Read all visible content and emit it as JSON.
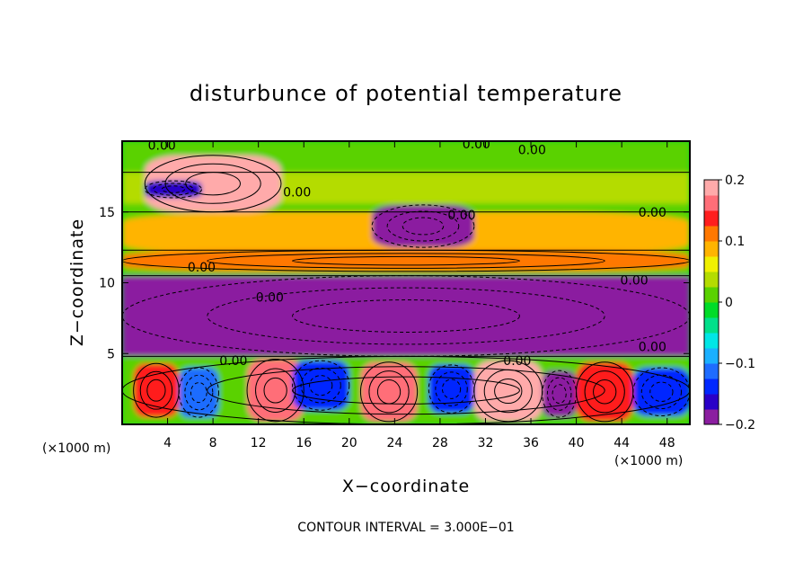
{
  "chart_data": {
    "type": "heatmap",
    "title": "disturbunce of potential temperature",
    "xlabel": "X−coordinate",
    "ylabel": "Z−coordinate",
    "x_unit": "(×1000 m)",
    "y_unit": "(×1000 m)",
    "footer": "CONTOUR INTERVAL = 3.000E−01",
    "xlim": [
      0,
      50
    ],
    "ylim": [
      0,
      20
    ],
    "x_ticks": [
      4,
      8,
      12,
      16,
      20,
      24,
      28,
      32,
      36,
      40,
      44,
      48
    ],
    "y_ticks": [
      5,
      10,
      15
    ],
    "colorbar": {
      "range": [
        -0.2,
        0.2
      ],
      "ticks": [
        {
          "value": 0.2,
          "label": "0.2"
        },
        {
          "value": 0.1,
          "label": "0.1"
        },
        {
          "value": 0,
          "label": "0"
        },
        {
          "value": -0.1,
          "label": "−0.1"
        },
        {
          "value": -0.2,
          "label": "−0.2"
        }
      ],
      "colors": [
        "#8b1ea0",
        "#2a00c8",
        "#0028ff",
        "#1e6cff",
        "#1ab0ff",
        "#00e6e6",
        "#00e08a",
        "#00dc28",
        "#5ad200",
        "#b4dc00",
        "#f0f000",
        "#ffb400",
        "#ff7800",
        "#ff1e1e",
        "#ff6e78",
        "#ffaaaa"
      ]
    },
    "contour_labels": [
      {
        "text": "0.00",
        "x": 3.5,
        "z": 19.7
      },
      {
        "text": "0.00",
        "x": 31.2,
        "z": 19.8
      },
      {
        "text": "0.00",
        "x": 36.1,
        "z": 19.4
      },
      {
        "text": "0.00",
        "x": 15.4,
        "z": 16.4
      },
      {
        "text": "0.00",
        "x": 29.9,
        "z": 14.8
      },
      {
        "text": "0.00",
        "x": 46.7,
        "z": 15.0
      },
      {
        "text": "0.00",
        "x": 7.0,
        "z": 11.1
      },
      {
        "text": "0.00",
        "x": 13.0,
        "z": 9.0
      },
      {
        "text": "0.00",
        "x": 45.1,
        "z": 10.2
      },
      {
        "text": "0.00",
        "x": 9.8,
        "z": 4.5
      },
      {
        "text": "0.00",
        "x": 34.8,
        "z": 4.5
      },
      {
        "text": "0.00",
        "x": 46.7,
        "z": 5.5
      }
    ],
    "field_regions": [
      {
        "x": [
          0,
          50
        ],
        "z": [
          0,
          20
        ],
        "value": 0.0
      },
      {
        "x": [
          0,
          50
        ],
        "z": [
          15.6,
          17.8
        ],
        "value": 0.03
      },
      {
        "x": [
          0,
          50
        ],
        "z": [
          12.0,
          15.0
        ],
        "value": 0.08
      },
      {
        "x": [
          0,
          50
        ],
        "z": [
          10.8,
          12.3
        ],
        "value": 0.1
      },
      {
        "x": [
          2,
          14
        ],
        "z": [
          15.0,
          19.0
        ],
        "value": 0.19
      },
      {
        "x": [
          2,
          7
        ],
        "z": [
          16.0,
          17.2
        ],
        "value": -0.17
      },
      {
        "x": [
          22,
          31
        ],
        "z": [
          12.5,
          15.5
        ],
        "value": -0.2
      },
      {
        "x": [
          0,
          50
        ],
        "z": [
          4.8,
          10.5
        ],
        "value": -0.2
      },
      {
        "x": [
          0,
          50
        ],
        "z": [
          0,
          4.8
        ],
        "value": 0.0
      },
      {
        "x": [
          1,
          5
        ],
        "z": [
          0.5,
          4.3
        ],
        "value": 0.15
      },
      {
        "x": [
          5,
          8.5
        ],
        "z": [
          0.5,
          4.0
        ],
        "value": -0.12
      },
      {
        "x": [
          11,
          16
        ],
        "z": [
          0.2,
          4.6
        ],
        "value": 0.16
      },
      {
        "x": [
          15,
          20
        ],
        "z": [
          1.0,
          4.5
        ],
        "value": -0.14
      },
      {
        "x": [
          21,
          26
        ],
        "z": [
          0.2,
          4.4
        ],
        "value": 0.17
      },
      {
        "x": [
          27,
          31
        ],
        "z": [
          0.8,
          4.2
        ],
        "value": -0.15
      },
      {
        "x": [
          31,
          37
        ],
        "z": [
          0.2,
          4.5
        ],
        "value": 0.18
      },
      {
        "x": [
          37,
          40
        ],
        "z": [
          0.5,
          3.8
        ],
        "value": -0.18
      },
      {
        "x": [
          40,
          45
        ],
        "z": [
          0.2,
          4.4
        ],
        "value": 0.15
      },
      {
        "x": [
          45,
          50
        ],
        "z": [
          0.6,
          4.0
        ],
        "value": -0.13
      }
    ]
  }
}
